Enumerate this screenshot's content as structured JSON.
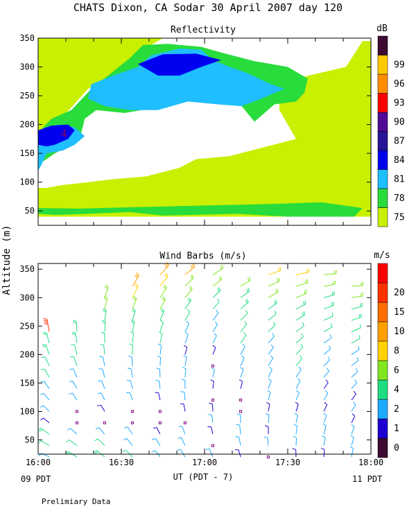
{
  "title": "CHATS Dixon, CA  Sodar  30 April 2007  day 120",
  "ylabel": "Altitude (m)",
  "xlabel": "UT  (PDT - 7)",
  "x_left_local": "09 PDT",
  "x_right_local": "11 PDT",
  "footnote": "Prelimiary Data",
  "chart_data": [
    {
      "type": "heatmap",
      "title": "Reflectivity",
      "unit_label": "dB",
      "x_ticks": [
        "16:00",
        "16:30",
        "17:00",
        "17:30",
        "18:00"
      ],
      "xlim_hours_ut": [
        16.0,
        18.0
      ],
      "y_ticks": [
        50,
        100,
        150,
        200,
        250,
        300,
        350
      ],
      "ylim": [
        25,
        350
      ],
      "colorbar": {
        "levels": [
          75,
          78,
          81,
          84,
          87,
          90,
          93,
          96,
          99
        ],
        "colors": [
          "#c8f000",
          "#28dc3c",
          "#1ebeff",
          "#0000f0",
          "#281496",
          "#500a96",
          "#ff0000",
          "#ff8c00",
          "#ffc800",
          "#3c0a32"
        ]
      },
      "annotation": "4",
      "contours": [
        {
          "level": 75,
          "color": "#c8f000",
          "points": [
            [
              16.0,
              40
            ],
            [
              18.0,
              40
            ],
            [
              18.0,
              345
            ],
            [
              17.95,
              345
            ],
            [
              17.85,
              300
            ],
            [
              17.55,
              280
            ],
            [
              17.45,
              260
            ],
            [
              17.45,
              225
            ],
            [
              17.5,
              200
            ],
            [
              17.55,
              175
            ],
            [
              17.35,
              160
            ],
            [
              17.15,
              145
            ],
            [
              16.95,
              140
            ],
            [
              16.85,
              125
            ],
            [
              16.65,
              110
            ],
            [
              16.45,
              105
            ],
            [
              16.3,
              100
            ],
            [
              16.15,
              95
            ],
            [
              16.05,
              90
            ],
            [
              16.0,
              90
            ]
          ]
        },
        {
          "level": 75,
          "color": "#c8f000",
          "points": [
            [
              16.0,
              160
            ],
            [
              16.1,
              200
            ],
            [
              16.2,
              230
            ],
            [
              16.3,
              262
            ],
            [
              16.5,
              290
            ],
            [
              16.6,
              325
            ],
            [
              16.75,
              350
            ],
            [
              16.0,
              350
            ]
          ]
        },
        {
          "level": 78,
          "color": "#28dc3c",
          "points": [
            [
              16.0,
              45
            ],
            [
              16.1,
              43
            ],
            [
              16.3,
              45
            ],
            [
              16.55,
              48
            ],
            [
              16.75,
              42
            ],
            [
              17.2,
              45
            ],
            [
              17.5,
              40
            ],
            [
              17.9,
              40
            ],
            [
              17.95,
              55
            ],
            [
              17.7,
              65
            ],
            [
              17.4,
              62
            ],
            [
              17.1,
              60
            ],
            [
              16.8,
              58
            ],
            [
              16.5,
              56
            ],
            [
              16.25,
              54
            ],
            [
              16.0,
              55
            ]
          ]
        },
        {
          "level": 78,
          "color": "#28dc3c",
          "points": [
            [
              16.0,
              115
            ],
            [
              16.03,
              195
            ],
            [
              16.08,
              210
            ],
            [
              16.2,
              225
            ],
            [
              16.33,
              265
            ],
            [
              16.42,
              285
            ],
            [
              16.55,
              315
            ],
            [
              16.63,
              338
            ],
            [
              16.78,
              340
            ],
            [
              16.98,
              335
            ],
            [
              17.1,
              325
            ],
            [
              17.3,
              310
            ],
            [
              17.5,
              300
            ],
            [
              17.62,
              280
            ],
            [
              17.6,
              255
            ],
            [
              17.55,
              240
            ],
            [
              17.42,
              235
            ],
            [
              17.3,
              205
            ],
            [
              17.2,
              240
            ],
            [
              17.05,
              250
            ],
            [
              16.98,
              245
            ],
            [
              16.9,
              248
            ],
            [
              16.72,
              230
            ],
            [
              16.52,
              220
            ],
            [
              16.35,
              225
            ],
            [
              16.28,
              210
            ],
            [
              16.25,
              175
            ],
            [
              16.2,
              165
            ],
            [
              16.1,
              150
            ],
            [
              16.05,
              140
            ],
            [
              16.0,
              130
            ]
          ]
        },
        {
          "level": 81,
          "color": "#1ebeff",
          "points": [
            [
              16.0,
              120
            ],
            [
              16.0,
              165
            ],
            [
              16.05,
              190
            ],
            [
              16.12,
              200
            ],
            [
              16.22,
              195
            ],
            [
              16.28,
              180
            ],
            [
              16.22,
              165
            ],
            [
              16.15,
              155
            ],
            [
              16.05,
              150
            ],
            [
              16.02,
              130
            ]
          ]
        },
        {
          "level": 81,
          "color": "#1ebeff",
          "points": [
            [
              16.3,
              245
            ],
            [
              16.32,
              270
            ],
            [
              16.45,
              285
            ],
            [
              16.6,
              300
            ],
            [
              16.68,
              320
            ],
            [
              16.85,
              332
            ],
            [
              16.98,
              330
            ],
            [
              17.05,
              312
            ],
            [
              17.15,
              300
            ],
            [
              17.25,
              290
            ],
            [
              17.4,
              270
            ],
            [
              17.48,
              262
            ],
            [
              17.3,
              240
            ],
            [
              17.22,
              232
            ],
            [
              17.08,
              235
            ],
            [
              16.9,
              240
            ],
            [
              16.72,
              225
            ],
            [
              16.55,
              225
            ],
            [
              16.4,
              232
            ]
          ]
        },
        {
          "level": 84,
          "color": "#0000f0",
          "points": [
            [
              16.0,
              165
            ],
            [
              16.0,
              190
            ],
            [
              16.08,
              198
            ],
            [
              16.18,
              200
            ],
            [
              16.22,
              190
            ],
            [
              16.18,
              175
            ],
            [
              16.1,
              165
            ],
            [
              16.05,
              162
            ]
          ]
        },
        {
          "level": 84,
          "color": "#0000f0",
          "points": [
            [
              16.6,
              305
            ],
            [
              16.72,
              285
            ],
            [
              16.85,
              285
            ],
            [
              16.98,
              300
            ],
            [
              17.1,
              312
            ],
            [
              16.95,
              323
            ],
            [
              16.75,
              322
            ]
          ]
        }
      ]
    },
    {
      "type": "scatter",
      "title": "Wind Barbs (m/s)",
      "unit_label": "m/s",
      "x_ticks": [
        "16:00",
        "16:30",
        "17:00",
        "17:30",
        "18:00"
      ],
      "xlim_hours_ut": [
        16.0,
        18.0
      ],
      "y_ticks": [
        50,
        100,
        150,
        200,
        250,
        300,
        350
      ],
      "ylim": [
        25,
        360
      ],
      "colorbar": {
        "levels": [
          0,
          1,
          2,
          4,
          6,
          8,
          10,
          15,
          20
        ],
        "colors": [
          "#3c0a32",
          "#1e00d2",
          "#1eaaff",
          "#1edc82",
          "#82e61e",
          "#ffd200",
          "#ffa000",
          "#ff6e00",
          "#ff3200",
          "#ff0000"
        ]
      },
      "alt_levels_m": [
        20,
        40,
        60,
        80,
        100,
        120,
        140,
        160,
        180,
        200,
        220,
        240,
        260,
        280,
        300,
        320,
        340
      ],
      "profiles": [
        {
          "time_ut": 16.067,
          "max_alt": 240,
          "heaviest_barb_m_s": 20,
          "speeds_m_s": [
            3,
            4,
            5,
            1.5,
            2.5,
            3,
            3.5,
            4,
            4.5,
            5,
            5.5,
            20,
            null,
            null,
            null,
            null,
            null
          ]
        },
        {
          "time_ut": 16.233,
          "max_alt": 225,
          "speeds_m_s": [
            5,
            4,
            3,
            0.5,
            0.5,
            2.5,
            3,
            3.5,
            4,
            4.5,
            5,
            5,
            null,
            null,
            null,
            null,
            null
          ]
        },
        {
          "time_ut": 16.4,
          "max_alt": 290,
          "speeds_m_s": [
            5,
            4,
            3,
            0.5,
            1.5,
            2,
            2.5,
            3,
            3.5,
            4,
            4.5,
            5,
            5,
            6,
            6,
            null,
            null
          ]
        },
        {
          "time_ut": 16.567,
          "max_alt": 320,
          "speeds_m_s": [
            4,
            3.5,
            3,
            0.5,
            0.5,
            2,
            2.5,
            3,
            3.5,
            4,
            4.5,
            5,
            5,
            6,
            8,
            10,
            null
          ]
        },
        {
          "time_ut": 16.733,
          "max_alt": 335,
          "speeds_m_s": [
            2,
            2.5,
            1.5,
            0.5,
            0.5,
            1.5,
            2,
            2.5,
            3,
            3.5,
            4,
            4.5,
            5,
            6,
            7,
            8,
            10
          ]
        },
        {
          "time_ut": 16.883,
          "max_alt": 345,
          "speeds_m_s": [
            3,
            3,
            2.5,
            0.5,
            1.5,
            2,
            2.5,
            3,
            3.5,
            1.5,
            3.5,
            3.5,
            4,
            5,
            6,
            7,
            10
          ]
        },
        {
          "time_ut": 17.05,
          "max_alt": 350,
          "speeds_m_s": [
            3,
            0.5,
            1.5,
            2,
            1.5,
            0.5,
            1.5,
            2,
            0.5,
            1.5,
            2.5,
            3,
            3.5,
            4,
            5,
            6,
            7
          ]
        },
        {
          "time_ut": 17.217,
          "max_alt": 325,
          "speeds_m_s": [
            1.5,
            3,
            3.5,
            2,
            0.5,
            0.5,
            1.5,
            2.5,
            3,
            3.5,
            4,
            4,
            4.5,
            5,
            5.5,
            6,
            null
          ]
        },
        {
          "time_ut": 17.383,
          "max_alt": 340,
          "speeds_m_s": [
            0.5,
            2,
            1.5,
            2,
            1.5,
            2,
            2.5,
            3,
            3.5,
            3,
            3.5,
            4,
            4.5,
            5,
            6,
            7,
            8
          ]
        },
        {
          "time_ut": 17.55,
          "max_alt": 340,
          "speeds_m_s": [
            1.5,
            2,
            2.5,
            2,
            1.5,
            2,
            3,
            3.5,
            4,
            4.5,
            4,
            4.5,
            5,
            5.5,
            6,
            7,
            8
          ]
        },
        {
          "time_ut": 17.717,
          "max_alt": 350,
          "speeds_m_s": [
            1.5,
            2.5,
            3,
            2,
            1.5,
            2,
            1.5,
            2,
            2.5,
            3,
            3.5,
            4,
            4.5,
            5,
            5.5,
            6,
            7
          ]
        },
        {
          "time_ut": 17.883,
          "max_alt": 320,
          "speeds_m_s": [
            3,
            2.5,
            2,
            1.5,
            2,
            1.5,
            2,
            2.5,
            3,
            3.5,
            4,
            4.5,
            5,
            5.5,
            6,
            6,
            null
          ]
        }
      ]
    }
  ]
}
